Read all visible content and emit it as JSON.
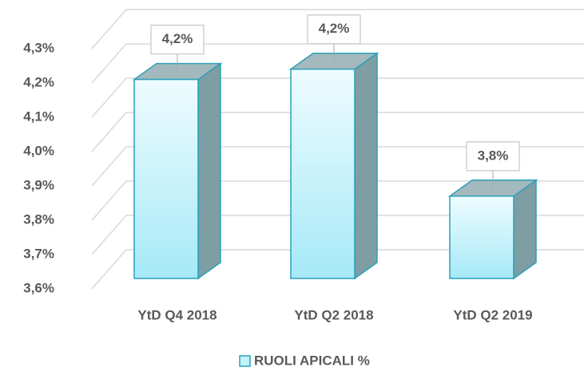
{
  "chart_data": {
    "type": "bar3d",
    "categories": [
      "YtD Q4 2018",
      "YtD Q2 2018",
      "YtD Q2 2019"
    ],
    "series": [
      {
        "name": "RUOLI APICALI %",
        "color": "#c4f2fb",
        "values": [
          4.18,
          4.21,
          3.84
        ],
        "value_labels": [
          "4,2%",
          "4,2%",
          "3,8%"
        ]
      }
    ],
    "ylim": [
      3.6,
      4.3
    ],
    "yticks": [
      {
        "value": 3.6,
        "label": "3,6%"
      },
      {
        "value": 3.7,
        "label": "3,7%"
      },
      {
        "value": 3.8,
        "label": "3,8%"
      },
      {
        "value": 3.9,
        "label": "3,9%"
      },
      {
        "value": 4.0,
        "label": "4,0%"
      },
      {
        "value": 4.1,
        "label": "4,1%"
      },
      {
        "value": 4.2,
        "label": "4,2%"
      },
      {
        "value": 4.3,
        "label": "4,3%"
      }
    ],
    "grid": true,
    "legend": "bottom"
  }
}
